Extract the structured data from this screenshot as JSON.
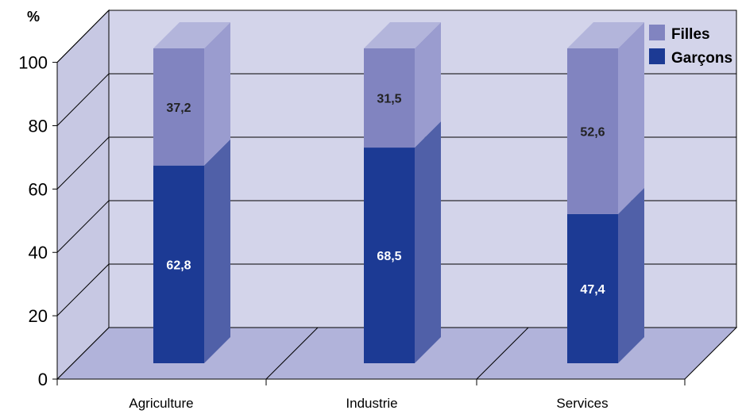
{
  "chart_data": {
    "type": "bar",
    "stacked": true,
    "three_d": true,
    "y_unit_label": "%",
    "categories": [
      "Agriculture",
      "Industrie",
      "Services"
    ],
    "series": [
      {
        "name": "Garçons",
        "values": [
          62.8,
          68.5,
          47.4
        ],
        "labels": [
          "62,8",
          "68,5",
          "47,4"
        ]
      },
      {
        "name": "Filles",
        "values": [
          37.2,
          31.5,
          52.6
        ],
        "labels": [
          "37,2",
          "31,5",
          "52,6"
        ]
      }
    ],
    "ylim": [
      0,
      100
    ],
    "yticks": [
      0,
      20,
      40,
      60,
      80,
      100
    ],
    "grid": true,
    "legend_position": "top-right",
    "colors": {
      "Garçons_front": "#1c3a94",
      "Garçons_side": "#5060a8",
      "Filles_front": "#8184c0",
      "Filles_side": "#9a9ccf",
      "Filles_top": "#b3b5db",
      "back_wall": "#d3d4ea",
      "side_wall": "#c7c8e3",
      "floor": "#b1b3da",
      "grid_line": "#000000",
      "label_dark": "#222222",
      "label_light": "#ffffff"
    }
  }
}
